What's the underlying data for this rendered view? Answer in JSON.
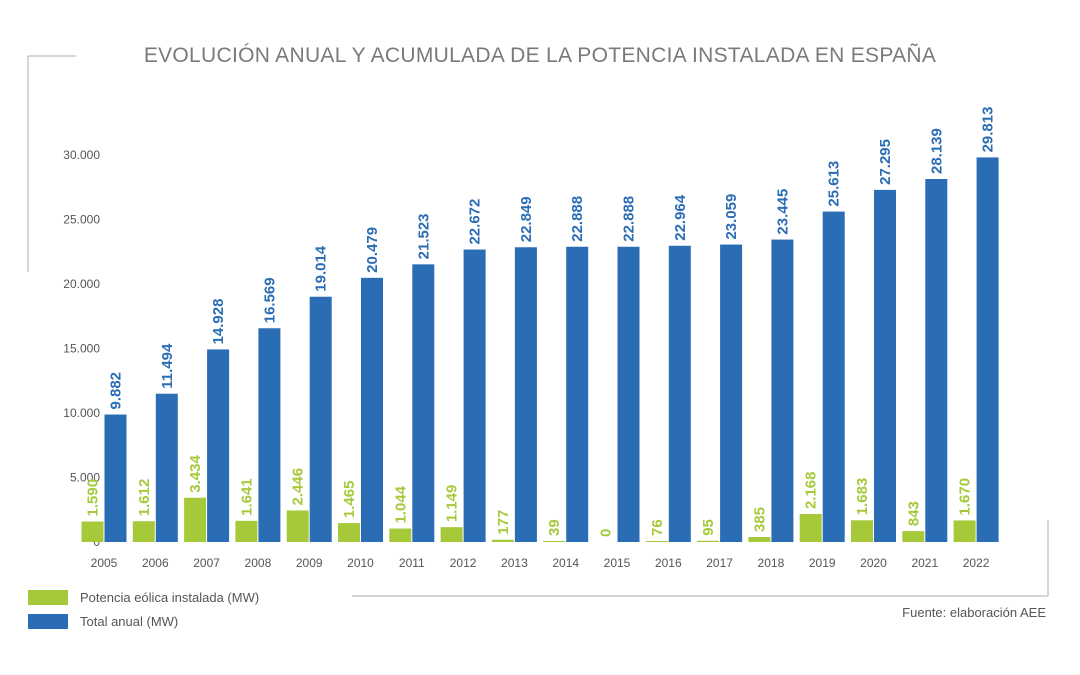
{
  "chart_data": {
    "type": "bar",
    "title": "EVOLUCIÓN ANUAL Y ACUMULADA DE LA POTENCIA INSTALADA EN ESPAÑA",
    "categories": [
      "2005",
      "2006",
      "2007",
      "2008",
      "2009",
      "2010",
      "2011",
      "2012",
      "2013",
      "2014",
      "2015",
      "2016",
      "2017",
      "2018",
      "2019",
      "2020",
      "2021",
      "2022"
    ],
    "series": [
      {
        "name": "Potencia eólica instalada (MW)",
        "color": "#a6c93a",
        "values": [
          1590,
          1612,
          3434,
          1641,
          2446,
          1465,
          1044,
          1149,
          177,
          39,
          0,
          76,
          95,
          385,
          2168,
          1683,
          843,
          1670
        ],
        "labels": [
          "1.590",
          "1.612",
          "3.434",
          "1.641",
          "2.446",
          "1.465",
          "1.044",
          "1.149",
          "177",
          "39",
          "0",
          "76",
          "95",
          "385",
          "2.168",
          "1.683",
          "843",
          "1.670"
        ]
      },
      {
        "name": "Total anual (MW)",
        "color": "#2a6db5",
        "values": [
          9882,
          11494,
          14928,
          16569,
          19014,
          20479,
          21523,
          22672,
          22849,
          22888,
          22888,
          22964,
          23059,
          23445,
          25613,
          27295,
          28139,
          29813
        ],
        "labels": [
          "9.882",
          "11.494",
          "14.928",
          "16.569",
          "19.014",
          "20.479",
          "21.523",
          "22.672",
          "22.849",
          "22.888",
          "22.888",
          "22.964",
          "23.059",
          "23.445",
          "25.613",
          "27.295",
          "28.139",
          "29.813"
        ]
      }
    ],
    "yticks": [
      0,
      5000,
      10000,
      15000,
      20000,
      25000,
      30000
    ],
    "ytick_labels": [
      "0",
      "5.000",
      "10.000",
      "15.000",
      "20.000",
      "25.000",
      "30.000"
    ],
    "ylim": [
      0,
      30000
    ],
    "xlabel": "",
    "ylabel": "",
    "grid": false,
    "legend": "bottom-left",
    "source": "Fuente: elaboración AEE"
  }
}
